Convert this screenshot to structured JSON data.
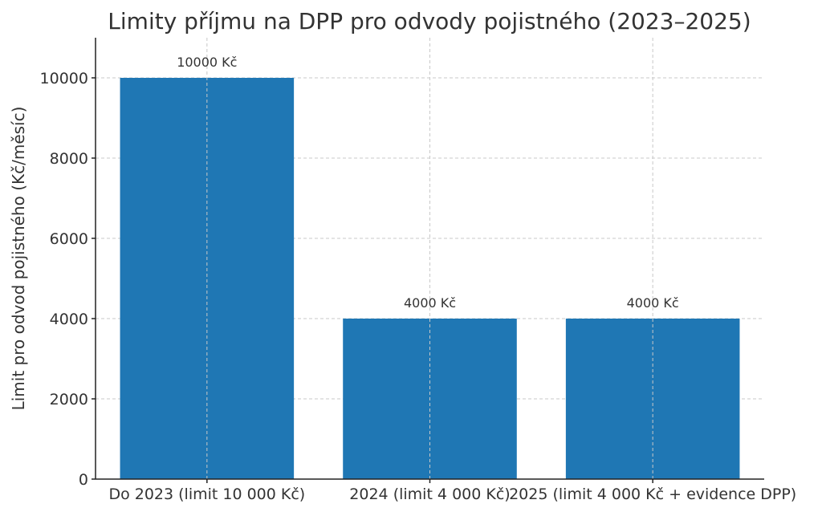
{
  "chart_data": {
    "type": "bar",
    "title": "Limity příjmu na DPP pro odvody pojistného (2023–2025)",
    "xlabel": "",
    "ylabel": "Limit pro odvod pojistného (Kč/měsíc)",
    "categories": [
      "Do 2023 (limit 10 000 Kč)",
      "2024 (limit 4 000 Kč)",
      "2025 (limit 4 000 Kč + evidence DPP)"
    ],
    "values": [
      10000,
      4000,
      4000
    ],
    "data_labels": [
      "10000 Kč",
      "4000 Kč",
      "4000 Kč"
    ],
    "yticks": [
      0,
      2000,
      4000,
      6000,
      8000,
      10000
    ],
    "ylim": [
      0,
      11000
    ],
    "grid": true,
    "bar_color": "#1f77b4"
  }
}
